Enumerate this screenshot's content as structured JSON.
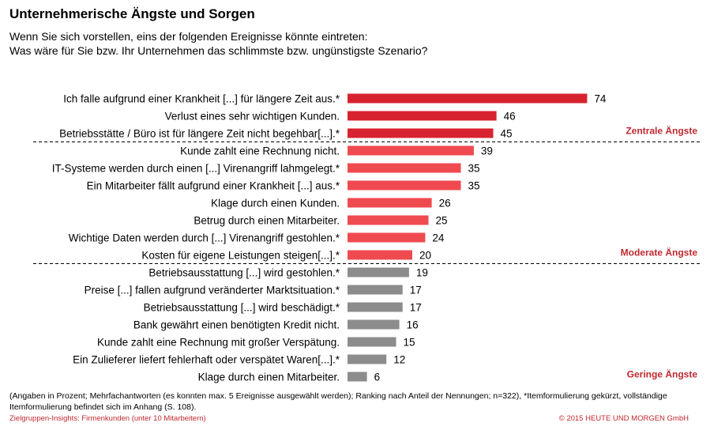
{
  "header": {
    "title": "Unternehmerische Ängste und Sorgen",
    "subtitle_line1": "Wenn Sie sich vorstellen, eins der folgenden Ereignisse könnte eintreten:",
    "subtitle_line2": "Was wäre für Sie bzw. Ihr Unternehmen das schlimmste bzw. ungünstigste Szenario?"
  },
  "chart_data": {
    "type": "bar",
    "orientation": "horizontal",
    "categories": [
      "Ich falle aufgrund einer Krankheit [...] für längere Zeit aus.*",
      "Verlust eines sehr wichtigen Kunden.",
      "Betriebsstätte / Büro ist für längere Zeit nicht begehbar[...].*",
      "Kunde zahlt eine Rechnung nicht.",
      "IT-Systeme werden durch einen [...] Virenangriff lahmgelegt.*",
      "Ein Mitarbeiter fällt aufgrund einer Krankheit [...] aus.*",
      "Klage durch einen Kunden.",
      "Betrug durch einen Mitarbeiter.",
      "Wichtige Daten werden durch [...] Virenangriff gestohlen.*",
      "Kosten für eigene Leistungen steigen[...].*",
      "Betriebsausstattung [...] wird gestohlen.*",
      "Preise [...] fallen aufgrund veränderter Marktsituation.*",
      "Betriebsausstattung [...] wird beschädigt.*",
      "Bank gewährt einen benötigten Kredit nicht.",
      "Kunde zahlt eine Rechnung mit großer Verspätung.",
      "Ein Zulieferer liefert fehlerhaft oder verspätet Waren[...].*",
      "Klage durch einen Mitarbeiter."
    ],
    "values": [
      74,
      46,
      45,
      39,
      35,
      35,
      26,
      25,
      24,
      20,
      19,
      17,
      17,
      16,
      15,
      12,
      6
    ],
    "groups": [
      {
        "label": "Zentrale Ängste",
        "start": 0,
        "end": 2,
        "color": "#d7232f"
      },
      {
        "label": "Moderate Ängste",
        "start": 3,
        "end": 9,
        "color": "#ef4a50"
      },
      {
        "label": "Geringe Ängste",
        "start": 10,
        "end": 16,
        "color": "#8c8c8c"
      }
    ],
    "group_label_color": "#c0282f",
    "xlim": [
      0,
      74
    ]
  },
  "footer": {
    "footnote": "(Angaben in Prozent; Mehrfachantworten (es konnten max. 5 Ereignisse ausgewählt werden); Ranking nach Anteil der Nennungen; n=322), *Itemformulierung gekürzt, vollständige Itemformulierung befindet sich im Anhang (S. 108).",
    "source": "Zielgruppen-Insights: Firmenkunden (unter 10 Mitarbeitern)",
    "copyright": "© 2015 HEUTE UND MORGEN GmbH"
  }
}
